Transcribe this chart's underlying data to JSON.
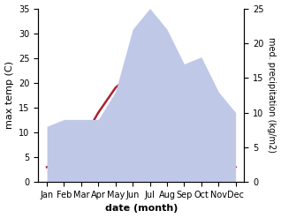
{
  "months": [
    "Jan",
    "Feb",
    "Mar",
    "Apr",
    "May",
    "Jun",
    "Jul",
    "Aug",
    "Sep",
    "Oct",
    "Nov",
    "Dec"
  ],
  "temperature": [
    3,
    4,
    8,
    14,
    19,
    22,
    24,
    24,
    19,
    13,
    7,
    3
  ],
  "precipitation": [
    8,
    9,
    9,
    9,
    13,
    22,
    25,
    22,
    17,
    18,
    13,
    10
  ],
  "temp_color": "#aa2233",
  "precip_fill_color": "#c0c8e8",
  "temp_ylim": [
    0,
    35
  ],
  "precip_ylim": [
    0,
    25
  ],
  "temp_yticks": [
    0,
    5,
    10,
    15,
    20,
    25,
    30,
    35
  ],
  "precip_yticks": [
    0,
    5,
    10,
    15,
    20,
    25
  ],
  "xlabel": "date (month)",
  "ylabel_left": "max temp (C)",
  "ylabel_right": "med. precipitation (kg/m2)",
  "bg_color": "#ffffff",
  "figsize": [
    3.18,
    2.47
  ],
  "dpi": 100
}
